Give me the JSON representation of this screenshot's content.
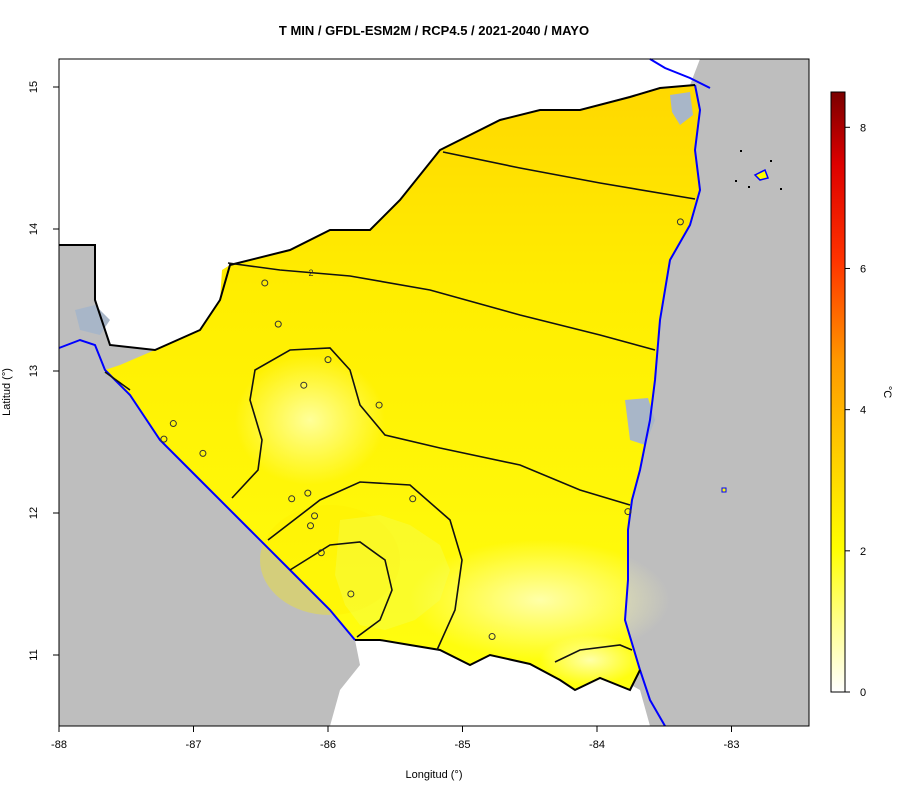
{
  "chart_data": {
    "type": "heatmap",
    "title": "T MIN / GFDL-ESM2M / RCP4.5 / 2021-2040 / MAYO",
    "xlabel": "Longitud (°)",
    "ylabel": "Latitud (°)",
    "xlim": [
      -88,
      -82.5
    ],
    "ylim": [
      10.5,
      15.2
    ],
    "x_ticks": [
      -88,
      -87,
      -86,
      -85,
      -84,
      -83
    ],
    "y_ticks": [
      11,
      12,
      13,
      14,
      15
    ],
    "colorbar": {
      "label": "°C",
      "range": [
        0,
        8.5
      ],
      "ticks": [
        0,
        2,
        4,
        6,
        8
      ],
      "colors": [
        "#ffffff",
        "#ffff66",
        "#ffff00",
        "#ffcc00",
        "#ff8800",
        "#ff0000",
        "#8b0000"
      ]
    },
    "contour_levels": [
      2
    ],
    "contour_label_example": "2",
    "colors": {
      "land_outside": "#bebebe",
      "sea": "#ffffff",
      "coast": "#0000ff",
      "country_border": "#000000"
    },
    "stations": [
      {
        "x": -86.47,
        "y": 13.62
      },
      {
        "x": -86.37,
        "y": 13.33
      },
      {
        "x": -86.0,
        "y": 13.08
      },
      {
        "x": -86.18,
        "y": 12.9
      },
      {
        "x": -85.62,
        "y": 12.76
      },
      {
        "x": -87.15,
        "y": 12.63
      },
      {
        "x": -87.22,
        "y": 12.52
      },
      {
        "x": -86.93,
        "y": 12.42
      },
      {
        "x": -86.27,
        "y": 12.1
      },
      {
        "x": -86.15,
        "y": 12.14
      },
      {
        "x": -85.37,
        "y": 12.1
      },
      {
        "x": -86.1,
        "y": 11.98
      },
      {
        "x": -86.13,
        "y": 11.91
      },
      {
        "x": -86.05,
        "y": 11.72
      },
      {
        "x": -85.83,
        "y": 11.43
      },
      {
        "x": -84.78,
        "y": 11.13
      },
      {
        "x": -83.77,
        "y": 12.01
      },
      {
        "x": -83.38,
        "y": 14.05
      }
    ]
  }
}
